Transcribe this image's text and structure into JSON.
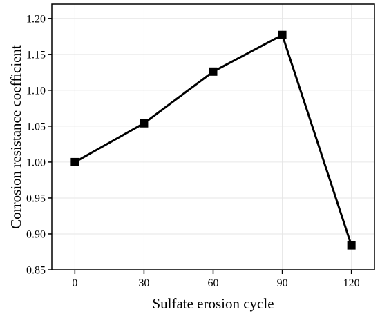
{
  "chart_data": {
    "type": "line",
    "x": [
      0,
      30,
      60,
      90,
      120
    ],
    "series": [
      {
        "values": [
          1.0,
          1.054,
          1.126,
          1.177,
          0.884
        ]
      }
    ],
    "xlabel": "Sulfate erosion cycle",
    "ylabel": "Corrosion resistance coefficient",
    "xlim": [
      -10,
      130
    ],
    "ylim": [
      0.85,
      1.22
    ],
    "xticks": [
      0,
      30,
      60,
      90,
      120
    ],
    "xtick_labels": [
      "0",
      "30",
      "60",
      "90",
      "120"
    ],
    "yticks": [
      0.85,
      0.9,
      0.95,
      1.0,
      1.05,
      1.1,
      1.15,
      1.2
    ],
    "ytick_labels": [
      "0.85",
      "0.90",
      "0.95",
      "1.00",
      "1.05",
      "1.10",
      "1.15",
      "1.20"
    ],
    "grid": true,
    "marker": "square",
    "colors": {
      "line": "#000000",
      "marker": "#000000",
      "grid": "#e6e6e6"
    }
  }
}
